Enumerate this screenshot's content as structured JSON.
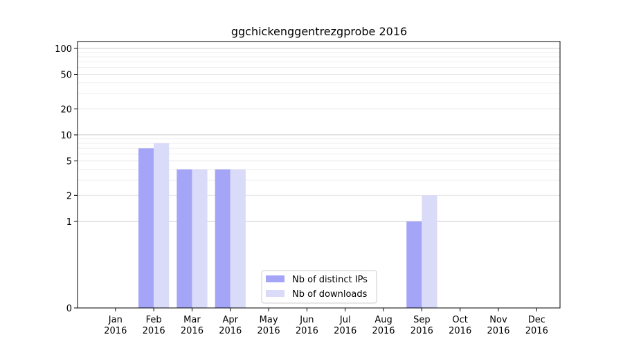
{
  "chart_data": {
    "type": "bar",
    "title": "ggchickenggentrezgprobe 2016",
    "xlabel": "",
    "ylabel": "",
    "y_scale": "symlog",
    "y_ticks": [
      0,
      1,
      2,
      5,
      10,
      20,
      50,
      100
    ],
    "ylim": [
      0,
      120
    ],
    "categories": [
      "Jan\n2016",
      "Feb\n2016",
      "Mar\n2016",
      "Apr\n2016",
      "May\n2016",
      "Jun\n2016",
      "Jul\n2016",
      "Aug\n2016",
      "Sep\n2016",
      "Oct\n2016",
      "Nov\n2016",
      "Dec\n2016"
    ],
    "series": [
      {
        "name": "Nb of distinct IPs",
        "color": "#a5a5f7",
        "values": [
          0,
          7,
          4,
          4,
          0,
          0,
          0,
          0,
          1,
          0,
          0,
          0
        ]
      },
      {
        "name": "Nb of downloads",
        "color": "#dadaf9",
        "values": [
          0,
          8,
          4,
          4,
          0,
          0,
          0,
          0,
          2,
          0,
          0,
          0
        ]
      }
    ],
    "grid": true,
    "legend_position": "bottom-center"
  }
}
